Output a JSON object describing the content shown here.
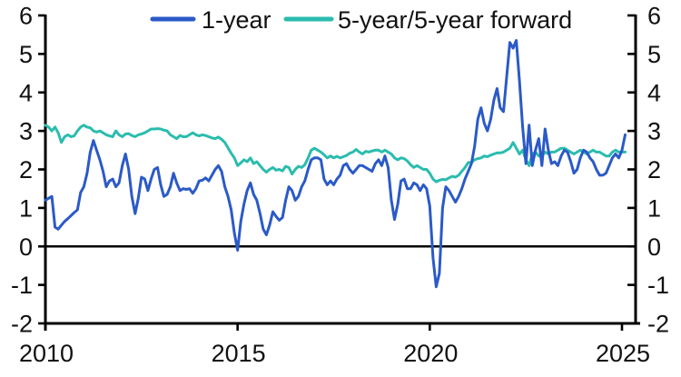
{
  "chart": {
    "background": "#ffffff",
    "axis_color": "#000000",
    "legend": [
      {
        "label": "1-year",
        "color": "#2b5ac7"
      },
      {
        "label": "5-year/5-year forward",
        "color": "#2abcae"
      }
    ]
  },
  "chart_data": {
    "type": "line",
    "title": "",
    "xlabel": "",
    "ylabel": "",
    "grid": false,
    "zero_line": true,
    "legend_position": "top-center",
    "dual_y_axis": true,
    "ylim": [
      -2,
      6
    ],
    "x_start": 2010.0,
    "x_step": 0.083333,
    "x_ticks": [
      2010,
      2015,
      2020,
      2025
    ],
    "x_tick_labels": [
      "2010",
      "2015",
      "2020",
      "2025"
    ],
    "y_ticks": [
      6,
      5,
      4,
      3,
      2,
      1,
      0,
      -1,
      -2
    ],
    "y_tick_labels": [
      "6",
      "5",
      "4",
      "3",
      "2",
      "1",
      "0",
      "-1",
      "-2"
    ],
    "series": [
      {
        "name": "5-year/5-year forward",
        "color": "#2abcae",
        "values": [
          3.15,
          3.1,
          3.0,
          3.1,
          2.95,
          2.7,
          2.85,
          2.9,
          2.85,
          2.87,
          3.0,
          3.1,
          3.15,
          3.1,
          3.08,
          3.0,
          2.97,
          3.0,
          2.95,
          2.9,
          2.87,
          2.85,
          3.0,
          2.9,
          2.85,
          2.92,
          2.93,
          2.88,
          2.85,
          2.9,
          2.92,
          2.95,
          3.0,
          3.05,
          3.05,
          3.06,
          3.05,
          3.02,
          3.0,
          2.9,
          2.85,
          2.8,
          2.88,
          2.85,
          2.85,
          2.9,
          2.95,
          2.9,
          2.87,
          2.9,
          2.88,
          2.85,
          2.82,
          2.8,
          2.84,
          2.78,
          2.7,
          2.56,
          2.42,
          2.3,
          2.1,
          2.17,
          2.25,
          2.2,
          2.3,
          2.15,
          2.2,
          2.1,
          2.0,
          1.93,
          2.0,
          2.05,
          1.98,
          2.0,
          1.96,
          2.08,
          2.05,
          1.88,
          2.0,
          2.08,
          2.05,
          2.12,
          2.3,
          2.5,
          2.55,
          2.5,
          2.45,
          2.38,
          2.3,
          2.35,
          2.3,
          2.34,
          2.3,
          2.33,
          2.36,
          2.42,
          2.45,
          2.52,
          2.45,
          2.4,
          2.47,
          2.45,
          2.48,
          2.5,
          2.5,
          2.45,
          2.5,
          2.45,
          2.4,
          2.3,
          2.25,
          2.3,
          2.28,
          2.22,
          2.12,
          2.05,
          2.1,
          2.05,
          2.0,
          2.0,
          1.9,
          1.75,
          1.68,
          1.72,
          1.74,
          1.73,
          1.78,
          1.82,
          1.8,
          1.85,
          1.95,
          2.05,
          2.18,
          2.18,
          2.25,
          2.28,
          2.3,
          2.35,
          2.33,
          2.37,
          2.4,
          2.43,
          2.43,
          2.45,
          2.5,
          2.55,
          2.7,
          2.55,
          2.4,
          2.5,
          2.25,
          2.1,
          2.4,
          2.45,
          2.35,
          2.35,
          2.45,
          2.4,
          2.45,
          2.45,
          2.5,
          2.55,
          2.55,
          2.5,
          2.45,
          2.4,
          2.45,
          2.5,
          2.45,
          2.4,
          2.45,
          2.5,
          2.45,
          2.45,
          2.4,
          2.35,
          2.35,
          2.45,
          2.5,
          2.45,
          2.45,
          2.45
        ]
      },
      {
        "name": "1-year",
        "color": "#2b5ac7",
        "values": [
          1.2,
          1.25,
          1.3,
          0.5,
          0.45,
          0.55,
          0.65,
          0.72,
          0.8,
          0.88,
          0.95,
          1.4,
          1.55,
          1.9,
          2.45,
          2.75,
          2.5,
          2.25,
          1.95,
          1.55,
          1.7,
          1.75,
          1.55,
          1.65,
          2.1,
          2.4,
          2.0,
          1.3,
          0.85,
          1.25,
          1.8,
          1.75,
          1.45,
          1.75,
          2.0,
          2.05,
          1.6,
          1.3,
          1.35,
          1.55,
          1.9,
          1.65,
          1.45,
          1.5,
          1.48,
          1.5,
          1.38,
          1.5,
          1.7,
          1.72,
          1.78,
          1.7,
          1.85,
          2.0,
          2.1,
          1.95,
          1.55,
          1.3,
          0.95,
          0.35,
          -0.1,
          0.65,
          1.1,
          1.45,
          1.65,
          1.35,
          1.2,
          0.85,
          0.45,
          0.3,
          0.55,
          0.9,
          0.78,
          0.68,
          0.75,
          1.2,
          1.55,
          1.45,
          1.2,
          1.3,
          1.55,
          1.7,
          2.0,
          2.25,
          2.3,
          2.3,
          2.25,
          1.75,
          1.6,
          1.7,
          1.6,
          1.75,
          1.85,
          2.1,
          2.15,
          2.0,
          1.9,
          2.0,
          2.1,
          2.1,
          2.05,
          2.0,
          1.95,
          2.15,
          2.25,
          2.1,
          2.35,
          2.05,
          1.2,
          0.7,
          1.1,
          1.7,
          1.75,
          1.5,
          1.5,
          1.65,
          1.6,
          1.45,
          1.6,
          1.5,
          1.05,
          -0.3,
          -1.05,
          -0.7,
          1.0,
          1.55,
          1.45,
          1.3,
          1.15,
          1.3,
          1.5,
          1.75,
          1.95,
          2.15,
          2.6,
          3.3,
          3.6,
          3.2,
          3.0,
          3.3,
          3.8,
          4.1,
          3.6,
          3.5,
          4.4,
          5.3,
          5.15,
          5.35,
          4.3,
          3.1,
          2.15,
          3.15,
          2.1,
          2.5,
          2.8,
          2.1,
          3.05,
          2.5,
          2.15,
          2.2,
          2.1,
          2.35,
          2.5,
          2.45,
          2.2,
          1.9,
          2.0,
          2.3,
          2.5,
          2.45,
          2.3,
          2.2,
          2.0,
          1.85,
          1.85,
          1.9,
          2.1,
          2.3,
          2.4,
          2.3,
          2.5,
          2.9
        ]
      }
    ]
  }
}
